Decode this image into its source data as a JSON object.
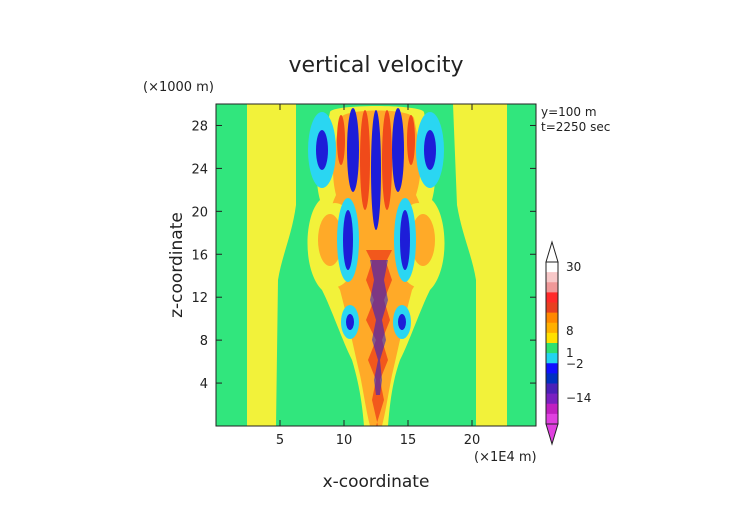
{
  "chart_data": {
    "type": "heatmap",
    "title": "vertical velocity",
    "xlabel": "x-coordinate",
    "ylabel": "z-coordinate",
    "x_unit": "(×1E4 m)",
    "y_unit": "(×1000 m)",
    "annotations": [
      "y=100 m",
      "t=2250 sec"
    ],
    "xlim": [
      0,
      25
    ],
    "ylim": [
      0,
      30
    ],
    "x_ticks": [
      5,
      10,
      15,
      20
    ],
    "y_ticks": [
      4,
      8,
      12,
      16,
      20,
      24,
      28
    ],
    "colorbar": {
      "labels": [
        "30",
        "8",
        "1",
        "−2",
        "−14"
      ],
      "colors": [
        "#ffffff",
        "#f7c8c8",
        "#f09898",
        "#ff2a2a",
        "#e84020",
        "#ff8800",
        "#ffb000",
        "#ffe000",
        "#2ee070",
        "#22d4f0",
        "#1010ff",
        "#0030c0",
        "#4a20b8",
        "#7a20c0",
        "#c020c0",
        "#e040e0"
      ]
    },
    "colors": {
      "background": "#31e67d",
      "yellow": "#f2f23a",
      "orange": "#ffaa28",
      "red": "#f04a1a",
      "cyan": "#2ad6f2",
      "blue": "#1d1dd8"
    }
  }
}
